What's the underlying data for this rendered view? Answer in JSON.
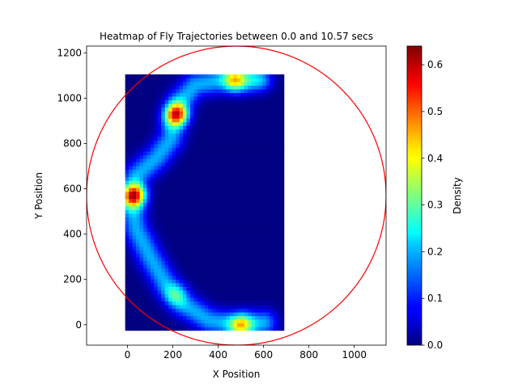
{
  "chart_data": {
    "type": "heatmap",
    "title": "Heatmap of Fly Trajectories between 0.0 and 10.57 secs",
    "xlabel": "X Position",
    "ylabel": "Y Position",
    "xlim": [
      -180,
      1140
    ],
    "ylim": [
      -90,
      1230
    ],
    "xticks": [
      0,
      200,
      400,
      600,
      800,
      1000
    ],
    "yticks": [
      0,
      200,
      400,
      600,
      800,
      1000,
      1200
    ],
    "heatmap_extent": {
      "x": [
        -10,
        690
      ],
      "y": [
        -25,
        1105
      ]
    },
    "arena_circle": {
      "center": [
        480,
        570
      ],
      "radius": 660,
      "color": "#ff0000"
    },
    "colormap": "jet",
    "colorbar": {
      "label": "Density",
      "range": [
        0.0,
        0.64
      ],
      "ticks": [
        "0.0",
        "0.1",
        "0.2",
        "0.3",
        "0.4",
        "0.5",
        "0.6"
      ]
    },
    "hotspots": [
      {
        "x": 30,
        "y": 570,
        "density": 0.64
      },
      {
        "x": 215,
        "y": 930,
        "density": 0.6
      },
      {
        "x": 475,
        "y": 1080,
        "density": 0.45
      },
      {
        "x": 590,
        "y": 1080,
        "density": 0.35
      },
      {
        "x": 500,
        "y": 0,
        "density": 0.45
      },
      {
        "x": 210,
        "y": 130,
        "density": 0.3
      }
    ]
  }
}
